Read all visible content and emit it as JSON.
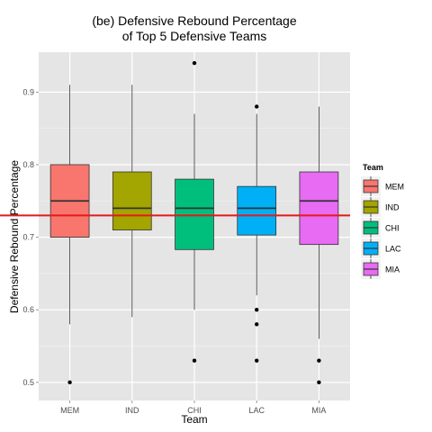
{
  "chart_data": {
    "type": "boxplot",
    "title_lines": [
      "(be) Defensive Rebound Percentage",
      "of Top 5 Defensive Teams"
    ],
    "xlabel": "Team",
    "ylabel": "Defensive Rebound Percentage",
    "categories": [
      "MEM",
      "IND",
      "CHI",
      "LAC",
      "MIA"
    ],
    "ylim": [
      0.475,
      0.955
    ],
    "yticks": [
      0.5,
      0.6,
      0.7,
      0.8,
      0.9
    ],
    "ytick_labels": [
      "0.5",
      "0.6",
      "0.7",
      "0.8",
      "0.9"
    ],
    "grid": true,
    "reference_line": {
      "y": 0.73,
      "color": "#e41a1c"
    },
    "legend": {
      "title": "Team",
      "position": "right",
      "entries": [
        "MEM",
        "IND",
        "CHI",
        "LAC",
        "MIA"
      ]
    },
    "colors": [
      "#f8766d",
      "#a3a500",
      "#00bf7d",
      "#00b0f6",
      "#e76bf3"
    ],
    "boxes": [
      {
        "team": "MEM",
        "whisker_low": 0.58,
        "q1": 0.7,
        "median": 0.75,
        "q3": 0.8,
        "whisker_high": 0.91,
        "outliers": [
          0.5
        ]
      },
      {
        "team": "IND",
        "whisker_low": 0.59,
        "q1": 0.71,
        "median": 0.74,
        "q3": 0.79,
        "whisker_high": 0.91,
        "outliers": []
      },
      {
        "team": "CHI",
        "whisker_low": 0.6,
        "q1": 0.683,
        "median": 0.74,
        "q3": 0.78,
        "whisker_high": 0.87,
        "outliers": [
          0.94,
          0.53
        ]
      },
      {
        "team": "LAC",
        "whisker_low": 0.62,
        "q1": 0.703,
        "median": 0.74,
        "q3": 0.77,
        "whisker_high": 0.87,
        "outliers": [
          0.88,
          0.6,
          0.58,
          0.53
        ]
      },
      {
        "team": "MIA",
        "whisker_low": 0.56,
        "q1": 0.69,
        "median": 0.75,
        "q3": 0.79,
        "whisker_high": 0.88,
        "outliers": [
          0.53,
          0.5
        ]
      }
    ]
  }
}
